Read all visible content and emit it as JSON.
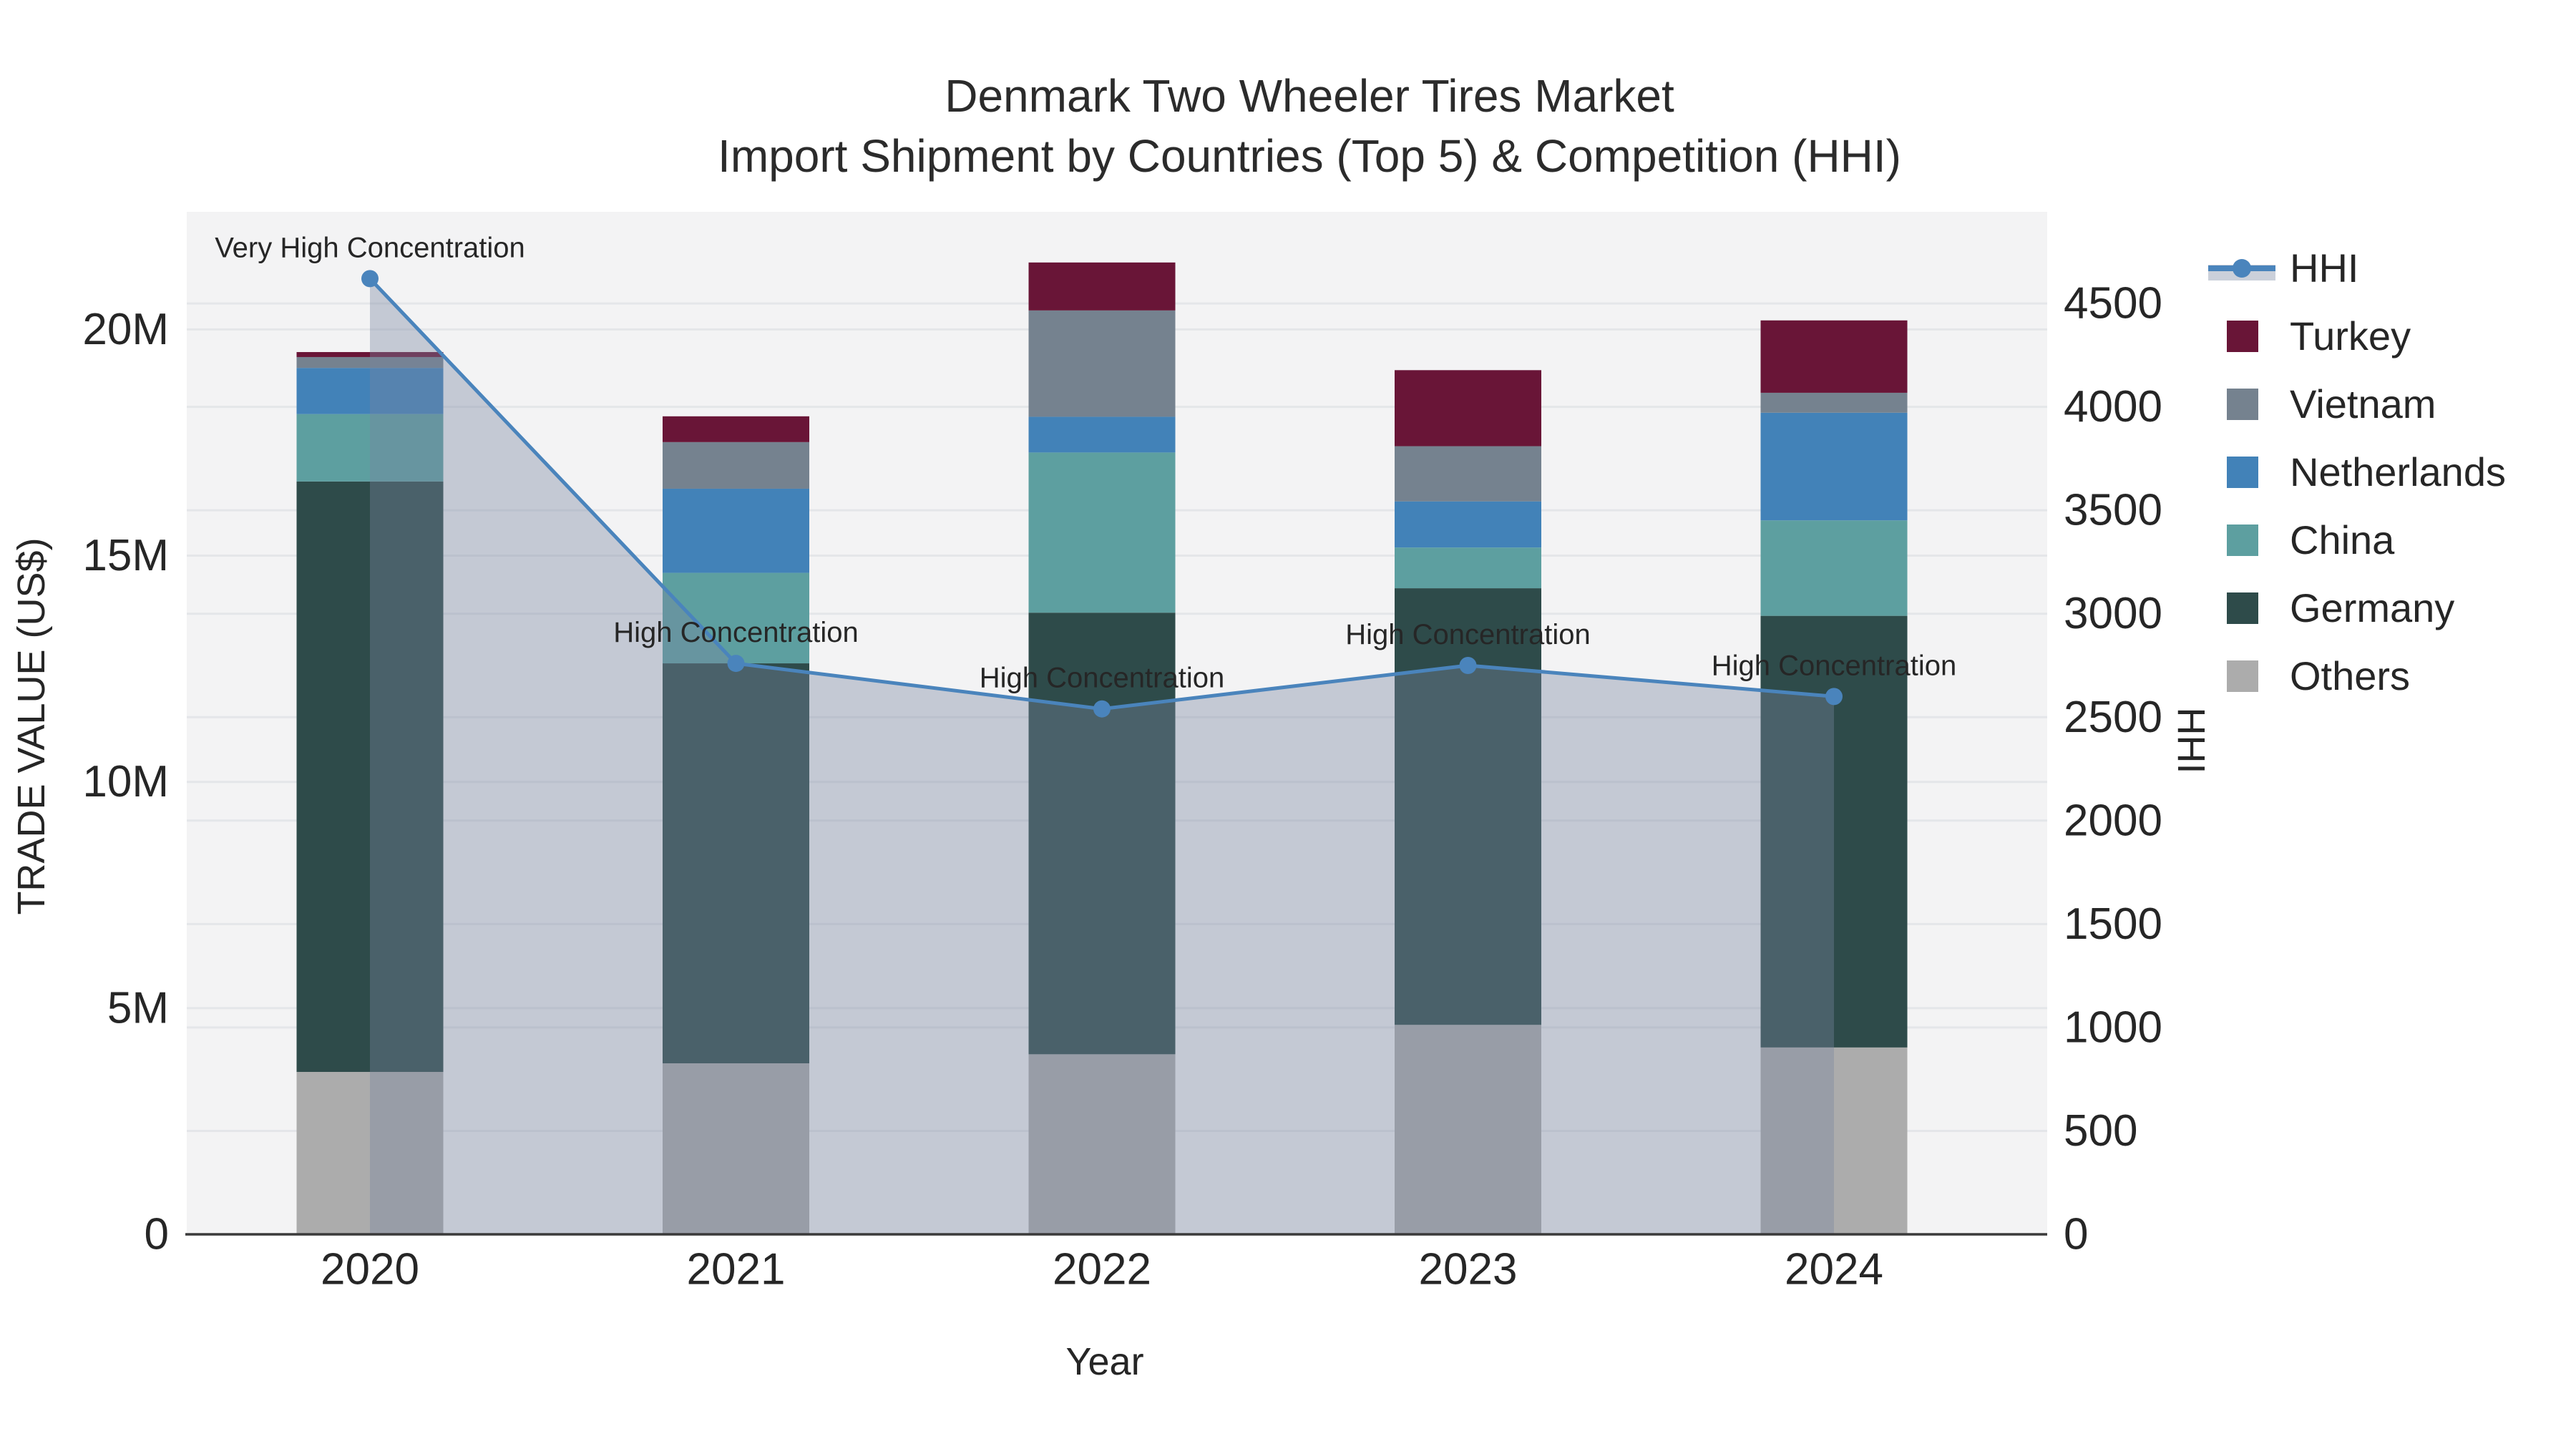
{
  "title": {
    "line1": "Denmark Two Wheeler Tires Market",
    "line2": "Import Shipment by Countries (Top 5) & Competition (HHI)"
  },
  "axes": {
    "y_left": {
      "title": "TRADE VALUE (US$)",
      "ticks": [
        "0",
        "5M",
        "10M",
        "15M",
        "20M"
      ],
      "tick_values_musd": [
        0,
        5,
        10,
        15,
        20
      ]
    },
    "y_right": {
      "title": "HHI",
      "ticks": [
        "0",
        "500",
        "1000",
        "1500",
        "2000",
        "2500",
        "3000",
        "3500",
        "4000",
        "4500"
      ],
      "tick_values": [
        0,
        500,
        1000,
        1500,
        2000,
        2500,
        3000,
        3500,
        4000,
        4500
      ]
    },
    "x": {
      "title": "Year",
      "ticks": [
        "2020",
        "2021",
        "2022",
        "2023",
        "2024"
      ]
    }
  },
  "legend": {
    "items": [
      {
        "label": "HHI",
        "type": "line",
        "color": "#4A84BC"
      },
      {
        "label": "Turkey",
        "type": "square",
        "color": "#691537"
      },
      {
        "label": "Vietnam",
        "type": "square",
        "color": "#75828F"
      },
      {
        "label": "Netherlands",
        "type": "square",
        "color": "#4282B8"
      },
      {
        "label": "China",
        "type": "square",
        "color": "#5D9FA0"
      },
      {
        "label": "Germany",
        "type": "square",
        "color": "#2E4B4A"
      },
      {
        "label": "Others",
        "type": "square",
        "color": "#ACACAC"
      }
    ]
  },
  "chart_data": {
    "type": "bar+line",
    "title": "Denmark Two Wheeler Tires Market - Import Shipment by Countries (Top 5) & Competition (HHI)",
    "categories": [
      "2020",
      "2021",
      "2022",
      "2023",
      "2024"
    ],
    "bar_value_unit": "million US$",
    "stack_order_bottom_to_top": [
      "Others",
      "Germany",
      "China",
      "Netherlands",
      "Vietnam",
      "Turkey"
    ],
    "series": [
      {
        "name": "Turkey",
        "color": "#691537",
        "values_musd": [
          0.11,
          0.57,
          1.06,
          1.68,
          1.6
        ]
      },
      {
        "name": "Vietnam",
        "color": "#75828F",
        "values_musd": [
          0.24,
          1.03,
          2.35,
          1.22,
          0.44
        ]
      },
      {
        "name": "Netherlands",
        "color": "#4282B8",
        "values_musd": [
          1.02,
          1.86,
          0.79,
          1.02,
          2.38
        ]
      },
      {
        "name": "China",
        "color": "#5D9FA0",
        "values_musd": [
          1.49,
          2.0,
          3.54,
          0.9,
          2.11
        ]
      },
      {
        "name": "Germany",
        "color": "#2E4B4A",
        "values_musd": [
          13.05,
          8.84,
          9.76,
          9.65,
          9.54
        ]
      },
      {
        "name": "Others",
        "color": "#ACACAC",
        "values_musd": [
          3.59,
          3.78,
          3.98,
          4.63,
          4.13
        ]
      }
    ],
    "line_series": {
      "name": "HHI",
      "axis": "right",
      "color": "#4A84BC",
      "fill_color": "rgba(120,135,160,0.38)",
      "values": [
        4620,
        2760,
        2540,
        2750,
        2600
      ],
      "annotations": [
        "Very High Concentration",
        "High Concentration",
        "High Concentration",
        "High Concentration",
        "High Concentration"
      ]
    },
    "axis_ranges": {
      "left_musd": [
        0,
        22.6
      ],
      "right_hhi": [
        0,
        4943
      ]
    },
    "grid": true,
    "legend_position": "right",
    "xlabel": "Year",
    "ylabel_left": "TRADE VALUE (US$)",
    "ylabel_right": "HHI"
  },
  "colors": {
    "plot_bg": "#F3F3F4",
    "grid": "#E4E6E9",
    "axis_line": "#3A3A3A",
    "text": "#262626",
    "annotation_text": "#111111"
  }
}
